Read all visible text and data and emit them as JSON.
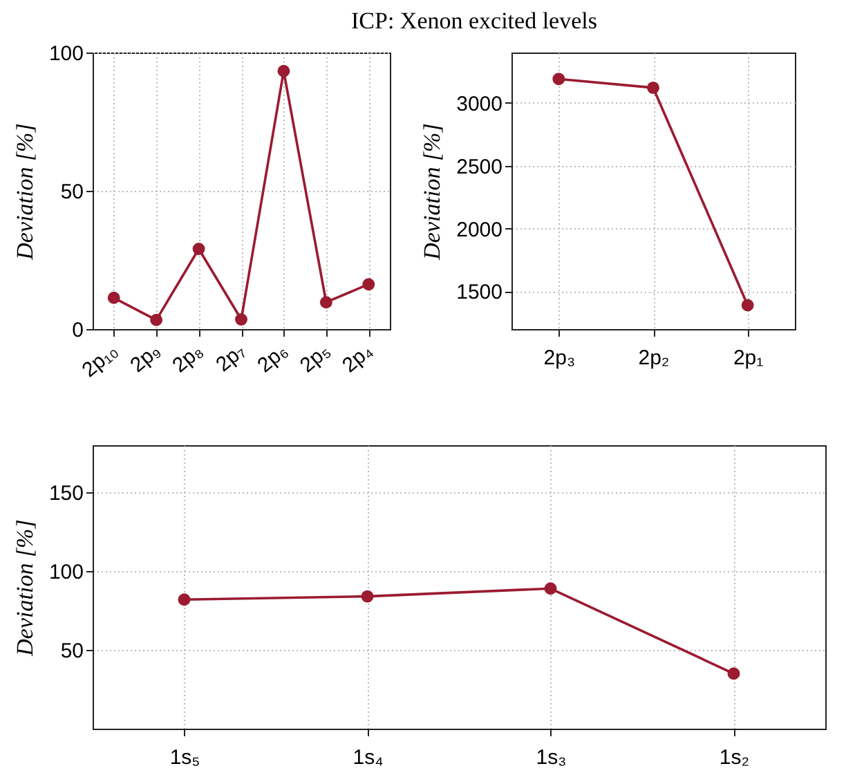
{
  "chart_data": [
    {
      "type": "line",
      "title": "ICP: Xenon excited levels",
      "ylabel": "Deviation [%]",
      "categories": [
        "2p₁₀",
        "2p₉",
        "2p₈",
        "2p₇",
        "2p₆",
        "2p₅",
        "2p₄"
      ],
      "series": [
        {
          "color": "#9b1b30",
          "values": [
            11.3,
            3.3,
            29,
            3.5,
            93.3,
            9.7,
            16.2
          ]
        }
      ],
      "ylim": [
        0,
        100
      ],
      "yticks": [
        0,
        50,
        100
      ],
      "grid": true,
      "marker": "circle",
      "line_style": "solid"
    },
    {
      "type": "line",
      "ylabel": "Deviation [%]",
      "categories": [
        "2p₃",
        "2p₂",
        "2p₁"
      ],
      "series": [
        {
          "color": "#9b1b30",
          "values": [
            3190,
            3120,
            1390
          ]
        }
      ],
      "ylim": [
        1200,
        3400
      ],
      "yticks": [
        1500,
        2000,
        2500,
        3000
      ],
      "grid": true,
      "marker": "circle",
      "line_style": "solid"
    },
    {
      "type": "line",
      "ylabel": "Deviation [%]",
      "categories": [
        "1s₅",
        "1s₄",
        "1s₃",
        "1s₂"
      ],
      "series": [
        {
          "color": "#9b1b30",
          "values": [
            82,
            84,
            89,
            35
          ]
        }
      ],
      "ylim": [
        0,
        180
      ],
      "yticks": [
        50,
        100,
        150
      ],
      "grid": true,
      "marker": "circle",
      "line_style": "solid"
    }
  ]
}
